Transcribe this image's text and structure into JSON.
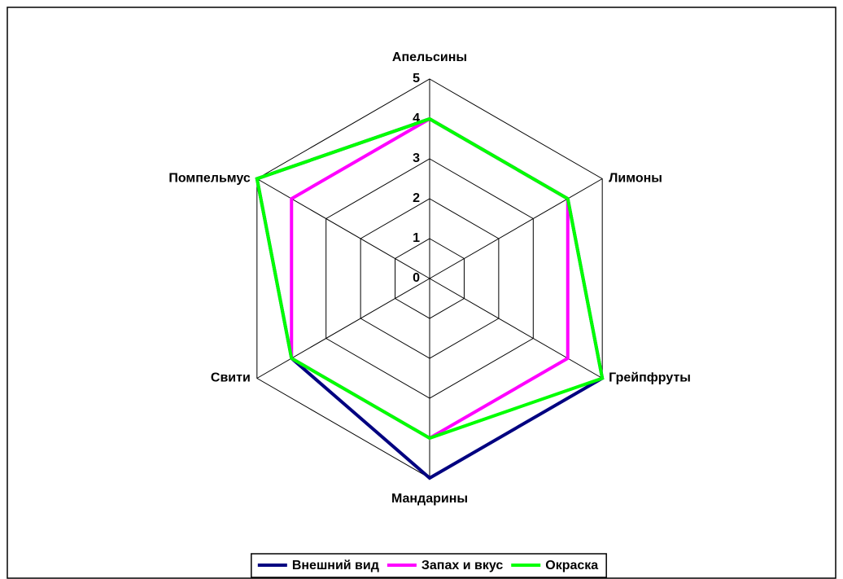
{
  "chart_data": {
    "type": "radar",
    "categories": [
      "Апельсины",
      "Лимоны",
      "Грейпфруты",
      "Мандарины",
      "Свити",
      "Помпельмус"
    ],
    "series": [
      {
        "name": "Внешний вид",
        "color": "#000080",
        "values": [
          4,
          4,
          5,
          5,
          4,
          5
        ]
      },
      {
        "name": "Запах и вкус",
        "color": "#ff00ff",
        "values": [
          4,
          4,
          4,
          4,
          4,
          4
        ]
      },
      {
        "name": "Окраска",
        "color": "#00ff00",
        "values": [
          4,
          4,
          5,
          4,
          4,
          5
        ]
      }
    ],
    "rlim": [
      0,
      5
    ],
    "rticks": [
      0,
      1,
      2,
      3,
      4,
      5
    ],
    "grid": true,
    "legend": "bottom"
  }
}
